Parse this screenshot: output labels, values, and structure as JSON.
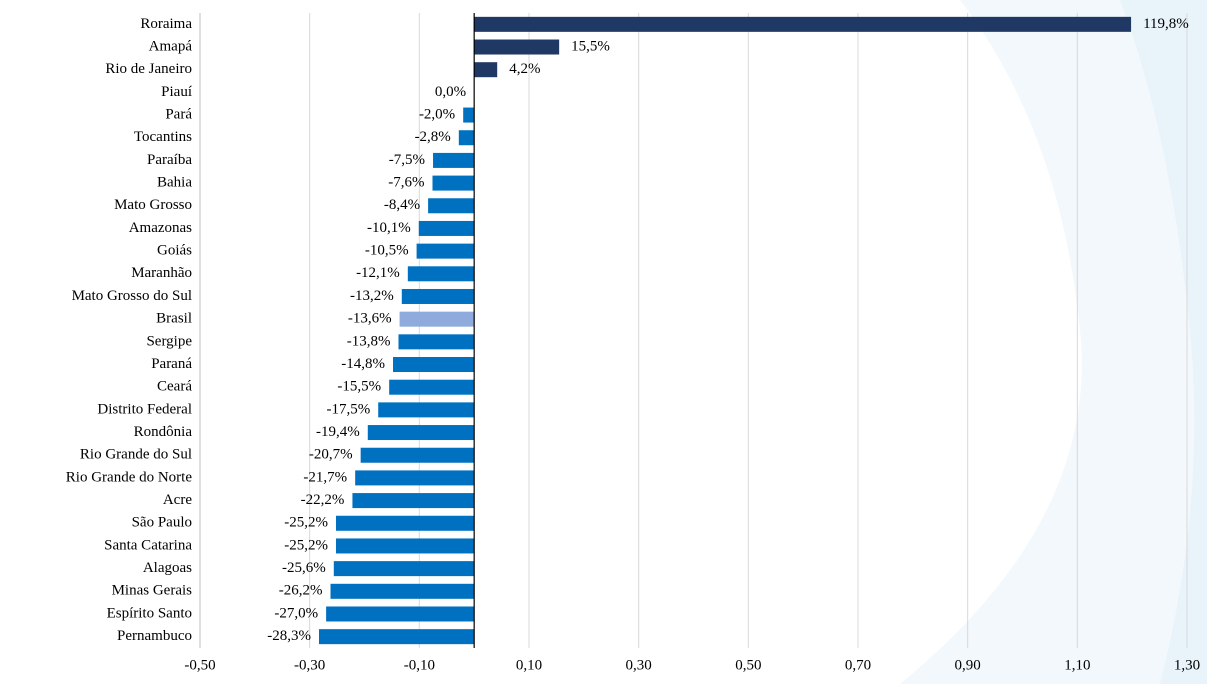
{
  "chart_data": {
    "type": "barh",
    "categories": [
      "Roraima",
      "Amapá",
      "Rio de Janeiro",
      "Piauí",
      "Pará",
      "Tocantins",
      "Paraíba",
      "Bahia",
      "Mato Grosso",
      "Amazonas",
      "Goiás",
      "Maranhão",
      "Mato Grosso do Sul",
      "Brasil",
      "Sergipe",
      "Paraná",
      "Ceará",
      "Distrito Federal",
      "Rondônia",
      "Rio Grande do Sul",
      "Rio Grande do Norte",
      "Acre",
      "São Paulo",
      "Santa Catarina",
      "Alagoas",
      "Minas Gerais",
      "Espírito Santo",
      "Pernambuco"
    ],
    "values": [
      1.198,
      0.155,
      0.042,
      0.0,
      -0.02,
      -0.028,
      -0.075,
      -0.076,
      -0.084,
      -0.101,
      -0.105,
      -0.121,
      -0.132,
      -0.136,
      -0.138,
      -0.148,
      -0.155,
      -0.175,
      -0.194,
      -0.207,
      -0.217,
      -0.222,
      -0.252,
      -0.252,
      -0.256,
      -0.262,
      -0.27,
      -0.283
    ],
    "value_labels": [
      "119,8%",
      "15,5%",
      "4,2%",
      "0,0%",
      "-2,0%",
      "-2,8%",
      "-7,5%",
      "-7,6%",
      "-8,4%",
      "-10,1%",
      "-10,5%",
      "-12,1%",
      "-13,2%",
      "-13,6%",
      "-13,8%",
      "-14,8%",
      "-15,5%",
      "-17,5%",
      "-19,4%",
      "-20,7%",
      "-21,7%",
      "-22,2%",
      "-25,2%",
      "-25,2%",
      "-25,6%",
      "-26,2%",
      "-27,0%",
      "-28,3%"
    ],
    "colors": [
      "#1f3864",
      "#1f3864",
      "#1f3864",
      "#0070c0",
      "#0070c0",
      "#0070c0",
      "#0070c0",
      "#0070c0",
      "#0070c0",
      "#0070c0",
      "#0070c0",
      "#0070c0",
      "#0070c0",
      "#8faadc",
      "#0070c0",
      "#0070c0",
      "#0070c0",
      "#0070c0",
      "#0070c0",
      "#0070c0",
      "#0070c0",
      "#0070c0",
      "#0070c0",
      "#0070c0",
      "#0070c0",
      "#0070c0",
      "#0070c0",
      "#0070c0"
    ],
    "xlim": [
      -0.5,
      1.3
    ],
    "xticks": [
      {
        "value": -0.5,
        "label": "-0,50"
      },
      {
        "value": -0.3,
        "label": "-0,30"
      },
      {
        "value": -0.1,
        "label": "-0,10"
      },
      {
        "value": 0.1,
        "label": "0,10"
      },
      {
        "value": 0.3,
        "label": "0,30"
      },
      {
        "value": 0.5,
        "label": "0,50"
      },
      {
        "value": 0.7,
        "label": "0,70"
      },
      {
        "value": 0.9,
        "label": "0,90"
      },
      {
        "value": 1.1,
        "label": "1,10"
      },
      {
        "value": 1.3,
        "label": "1,30"
      }
    ],
    "grid": true
  }
}
